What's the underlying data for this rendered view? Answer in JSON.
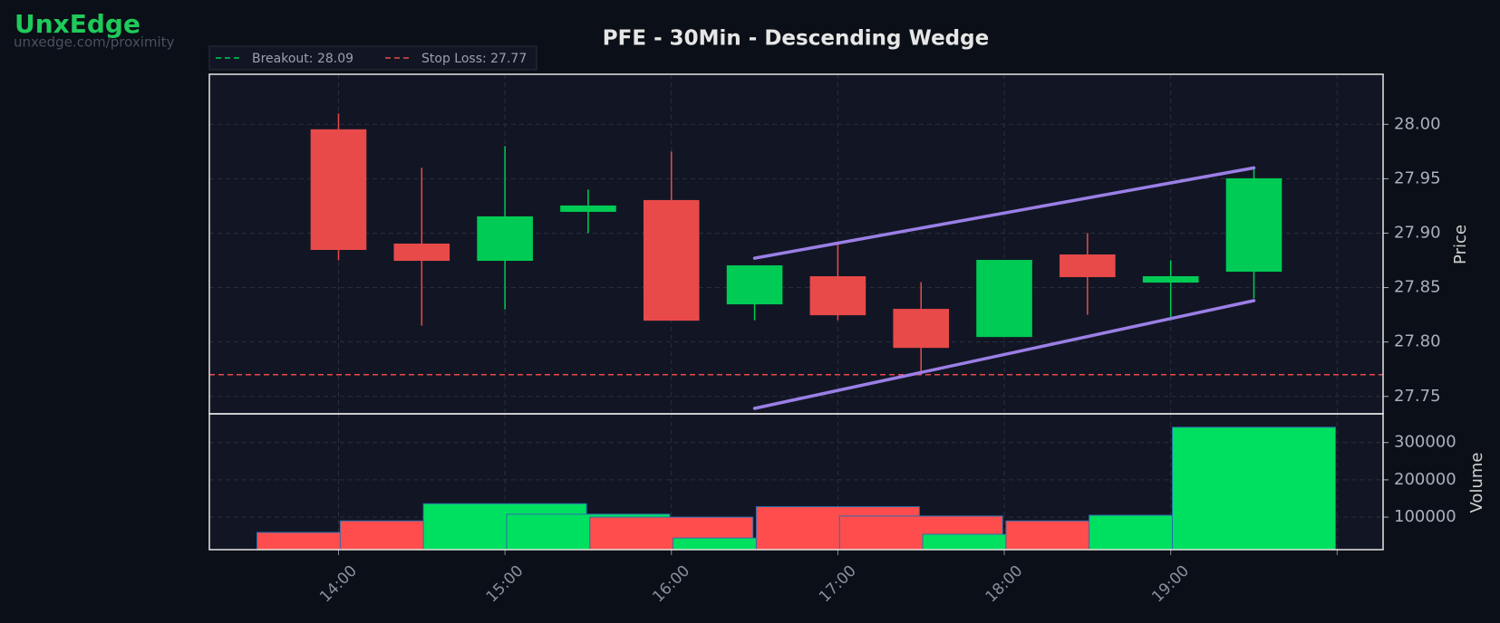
{
  "chart_data": {
    "type": "candlestick",
    "brand": "UnxEdge",
    "brand_url": "unxedge.com/proximity",
    "title": "PFE - 30Min - Descending Wedge",
    "ylabel": "Price",
    "x": [
      14,
      14.5,
      15,
      15.5,
      16,
      16.5,
      17,
      17.5,
      18,
      18.5,
      19,
      19.5
    ],
    "open": [
      27.995,
      27.89,
      27.875,
      27.92,
      27.93,
      27.835,
      27.86,
      27.83,
      27.805,
      27.88,
      27.855,
      27.865
    ],
    "high": [
      28.01,
      27.96,
      27.98,
      27.94,
      27.975,
      27.87,
      27.89,
      27.855,
      27.875,
      27.9,
      27.875,
      27.96
    ],
    "low": [
      27.875,
      27.815,
      27.83,
      27.9,
      27.82,
      27.82,
      27.82,
      27.77,
      27.805,
      27.825,
      27.82,
      27.84
    ],
    "close": [
      27.885,
      27.875,
      27.915,
      27.925,
      27.82,
      27.87,
      27.825,
      27.795,
      27.875,
      27.86,
      27.86,
      27.95
    ],
    "up_color": "#00cc55",
    "down_color": "#e84a4a",
    "xlim": [
      13.224,
      20.276
    ],
    "xticks": [
      {
        "value": 14,
        "label": "14:00"
      },
      {
        "value": 15,
        "label": "15:00"
      },
      {
        "value": 16,
        "label": "16:00"
      },
      {
        "value": 17,
        "label": "17:00"
      },
      {
        "value": 18,
        "label": "18:00"
      },
      {
        "value": 19,
        "label": "19:00"
      },
      {
        "value": 20,
        "label": null
      }
    ],
    "ylim": [
      27.734,
      28.046
    ],
    "yticks": [
      {
        "value": 27.75,
        "label": "27.75"
      },
      {
        "value": 27.8,
        "label": "27.80"
      },
      {
        "value": 27.85,
        "label": "27.85"
      },
      {
        "value": 27.9,
        "label": "27.90"
      },
      {
        "value": 27.95,
        "label": "27.95"
      },
      {
        "value": 28,
        "label": "28.00"
      }
    ],
    "grid": true,
    "lines": [
      {
        "name": "Breakout: 28.09",
        "value": 28.09,
        "color": "#00cc55"
      },
      {
        "name": "Stop Loss: 27.77",
        "value": 27.77,
        "color": "#e84a4a"
      }
    ],
    "wedge": {
      "color": "#9b7fe6",
      "upper": {
        "x": [
          16.5,
          19.5
        ],
        "y": [
          27.877,
          27.96
        ]
      },
      "lower": {
        "x": [
          16.5,
          19.5
        ],
        "y": [
          27.739,
          27.838
        ]
      }
    },
    "volume": {
      "label": "Volume",
      "values": [
        59000,
        90000,
        136000,
        108000,
        100000,
        44000,
        128000,
        103000,
        54000,
        90000,
        105000,
        341000
      ],
      "up_color": "#00e060",
      "down_color": "#ff4d4d",
      "ylim": [
        12800,
        377000
      ],
      "yticks": [
        100000,
        200000,
        300000
      ]
    }
  }
}
